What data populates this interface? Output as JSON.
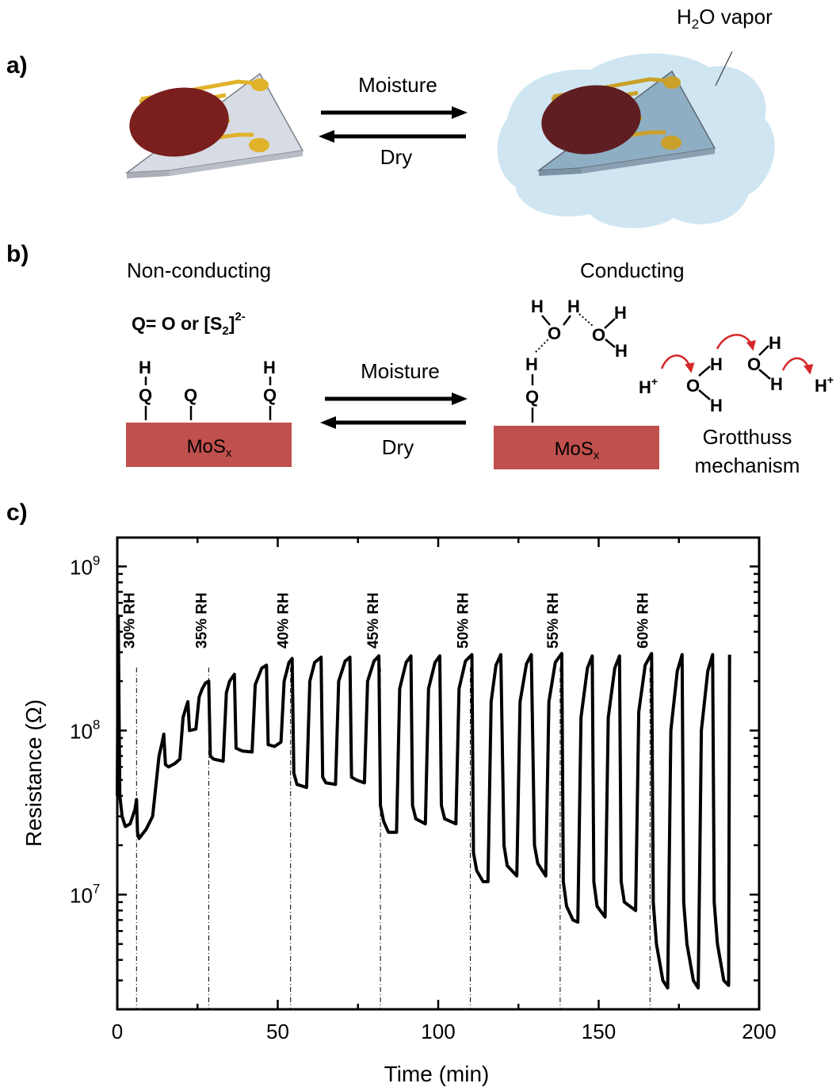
{
  "panel_a": {
    "label": "a)",
    "forward": "Moisture",
    "reverse": "Dry",
    "vapor_prefix": "H",
    "vapor_sub": "2",
    "vapor_suffix": "O vapor"
  },
  "panel_b": {
    "label": "b)",
    "left_title": "Non-conducting",
    "right_title": "Conducting",
    "q_definition_prefix": "Q= O or [S",
    "q_definition_sub": "2",
    "q_definition_close": "]",
    "q_definition_sup": "2-",
    "forward": "Moisture",
    "reverse": "Dry",
    "substrate": "MoS",
    "substrate_sub": "x",
    "atom_h": "H",
    "atom_q": "Q",
    "atom_o": "O",
    "proton_plus": "+",
    "mechanism_line1": "Grotthuss",
    "mechanism_line2": "mechanism",
    "colors": {
      "substrate": "#c0504d",
      "arrow_red": "#d62728"
    }
  },
  "panel_c": {
    "label": "c)"
  },
  "chart_data": {
    "type": "line",
    "xlabel": "Time (min)",
    "ylabel_prefix": "Resistance (",
    "ylabel_unit": "Ω",
    "ylabel_suffix": ")",
    "xlim": [
      0,
      200
    ],
    "ylim": [
      2000000,
      1500000000
    ],
    "yscale": "log",
    "xticks": [
      0,
      50,
      100,
      150,
      200
    ],
    "yticks": [
      {
        "value": 10000000,
        "base": "10",
        "exp": "7"
      },
      {
        "value": 100000000,
        "base": "10",
        "exp": "8"
      },
      {
        "value": 1000000000,
        "base": "10",
        "exp": "9"
      }
    ],
    "grid": false,
    "line_color": "#000000",
    "annotations": [
      {
        "x": 6,
        "label": "30% RH"
      },
      {
        "x": 28.5,
        "label": "35% RH"
      },
      {
        "x": 54,
        "label": "40% RH"
      },
      {
        "x": 82,
        "label": "45% RH"
      },
      {
        "x": 110,
        "label": "50% RH"
      },
      {
        "x": 138,
        "label": "55% RH"
      },
      {
        "x": 166,
        "label": "60% RH"
      }
    ],
    "series": [
      {
        "values": [
          [
            0,
            40000000
          ],
          [
            0.3,
            500000000
          ],
          [
            0.8,
            40000000
          ],
          [
            1.5,
            30000000
          ],
          [
            2.5,
            26000000
          ],
          [
            4,
            27000000
          ],
          [
            5.5,
            33000000
          ],
          [
            6,
            38000000
          ],
          [
            6.3,
            24000000
          ],
          [
            6.8,
            22000000
          ],
          [
            9,
            25000000
          ],
          [
            11,
            30000000
          ],
          [
            13,
            70000000
          ],
          [
            14,
            85000000
          ],
          [
            14.5,
            95000000
          ],
          [
            15,
            62000000
          ],
          [
            16,
            60000000
          ],
          [
            18,
            63000000
          ],
          [
            19.5,
            67000000
          ],
          [
            20.5,
            120000000
          ],
          [
            21.5,
            140000000
          ],
          [
            22,
            150000000
          ],
          [
            22.5,
            100000000
          ],
          [
            24.5,
            102000000
          ],
          [
            25.5,
            160000000
          ],
          [
            26.5,
            180000000
          ],
          [
            27.5,
            195000000
          ],
          [
            28.5,
            200000000
          ],
          [
            29,
            70000000
          ],
          [
            30,
            67000000
          ],
          [
            33,
            65000000
          ],
          [
            34,
            170000000
          ],
          [
            35,
            200000000
          ],
          [
            36.5,
            220000000
          ],
          [
            37,
            78000000
          ],
          [
            39,
            75000000
          ],
          [
            42,
            74000000
          ],
          [
            43,
            190000000
          ],
          [
            45,
            240000000
          ],
          [
            46.5,
            250000000
          ],
          [
            47,
            82000000
          ],
          [
            49,
            80000000
          ],
          [
            51,
            85000000
          ],
          [
            52,
            200000000
          ],
          [
            53.5,
            260000000
          ],
          [
            54.5,
            275000000
          ],
          [
            55,
            55000000
          ],
          [
            56,
            47000000
          ],
          [
            59,
            45000000
          ],
          [
            60,
            200000000
          ],
          [
            61.5,
            260000000
          ],
          [
            63.5,
            280000000
          ],
          [
            64,
            52000000
          ],
          [
            65,
            48000000
          ],
          [
            68,
            47000000
          ],
          [
            69,
            200000000
          ],
          [
            71,
            265000000
          ],
          [
            72.5,
            280000000
          ],
          [
            73,
            52000000
          ],
          [
            74.5,
            50000000
          ],
          [
            77,
            48000000
          ],
          [
            78,
            200000000
          ],
          [
            80,
            265000000
          ],
          [
            81.5,
            285000000
          ],
          [
            82,
            35000000
          ],
          [
            83,
            28000000
          ],
          [
            84.5,
            24000000
          ],
          [
            87,
            24000000
          ],
          [
            88,
            180000000
          ],
          [
            90,
            260000000
          ],
          [
            91.5,
            285000000
          ],
          [
            92,
            35000000
          ],
          [
            93,
            29000000
          ],
          [
            96,
            27000000
          ],
          [
            97,
            180000000
          ],
          [
            99,
            260000000
          ],
          [
            100.5,
            285000000
          ],
          [
            101,
            35000000
          ],
          [
            102,
            29000000
          ],
          [
            105.5,
            27000000
          ],
          [
            106.5,
            180000000
          ],
          [
            108.5,
            265000000
          ],
          [
            110.5,
            290000000
          ],
          [
            111,
            18000000
          ],
          [
            112,
            14000000
          ],
          [
            114,
            12000000
          ],
          [
            115.5,
            12000000
          ],
          [
            116.5,
            150000000
          ],
          [
            118,
            250000000
          ],
          [
            119.5,
            290000000
          ],
          [
            120.5,
            20000000
          ],
          [
            121.5,
            15000000
          ],
          [
            124.5,
            13000000
          ],
          [
            125.5,
            150000000
          ],
          [
            127.5,
            255000000
          ],
          [
            129,
            290000000
          ],
          [
            130,
            20000000
          ],
          [
            131,
            15500000
          ],
          [
            133.5,
            13000000
          ],
          [
            134.5,
            150000000
          ],
          [
            136.5,
            260000000
          ],
          [
            138.5,
            295000000
          ],
          [
            139,
            12000000
          ],
          [
            140,
            8500000
          ],
          [
            142,
            7000000
          ],
          [
            143.5,
            6800000
          ],
          [
            144.5,
            120000000
          ],
          [
            146.5,
            240000000
          ],
          [
            148,
            285000000
          ],
          [
            148.5,
            12000000
          ],
          [
            149.5,
            8500000
          ],
          [
            152,
            7300000
          ],
          [
            153,
            120000000
          ],
          [
            155,
            240000000
          ],
          [
            156.5,
            285000000
          ],
          [
            157,
            12000000
          ],
          [
            158,
            9000000
          ],
          [
            161.5,
            8000000
          ],
          [
            162.5,
            130000000
          ],
          [
            164.5,
            250000000
          ],
          [
            166.5,
            295000000
          ],
          [
            167,
            9000000
          ],
          [
            168,
            5000000
          ],
          [
            170,
            3000000
          ],
          [
            171.5,
            2700000
          ],
          [
            172.5,
            100000000
          ],
          [
            174.5,
            230000000
          ],
          [
            176,
            290000000
          ],
          [
            176.5,
            9000000
          ],
          [
            177.5,
            5000000
          ],
          [
            179.5,
            3000000
          ],
          [
            181,
            2700000
          ],
          [
            182,
            100000000
          ],
          [
            184,
            230000000
          ],
          [
            185.5,
            290000000
          ],
          [
            186,
            9000000
          ],
          [
            187,
            5000000
          ],
          [
            189,
            3000000
          ],
          [
            190.5,
            2800000
          ],
          [
            190.8,
            290000000
          ]
        ]
      }
    ]
  }
}
